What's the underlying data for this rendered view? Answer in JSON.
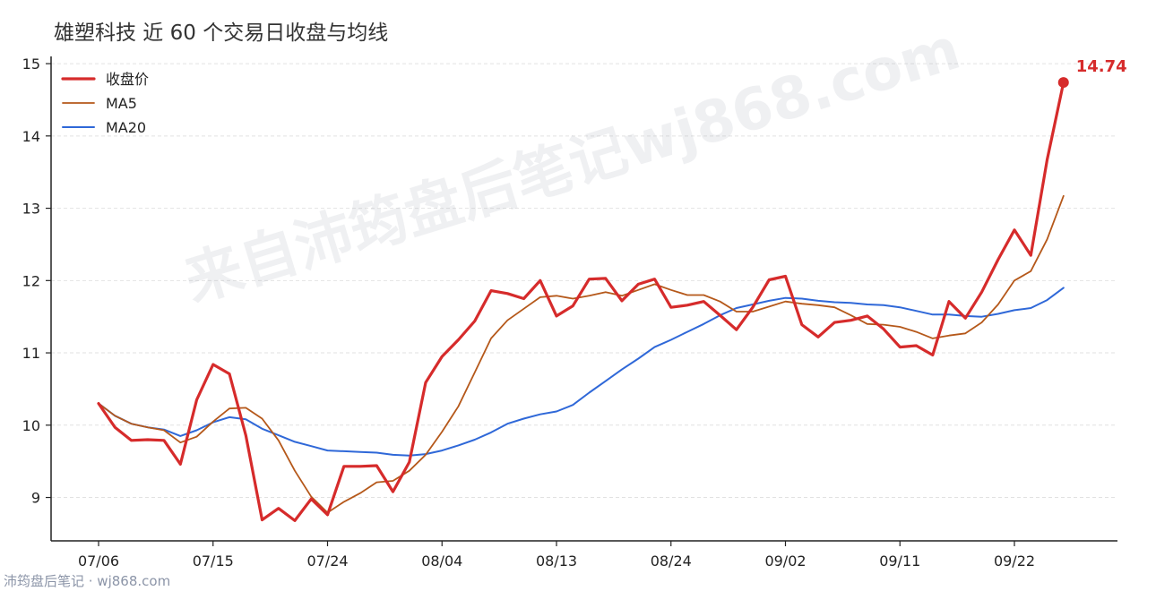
{
  "title": "雄塑科技 近 60 个交易日收盘与均线",
  "watermark": "来自沛筠盘后笔记wj868.com",
  "footer": "沛筠盘后笔记 · wj868.com",
  "colors": {
    "close": "#d62b2b",
    "ma5": "#b5581a",
    "ma20": "#2f68d8"
  },
  "chart_data": {
    "type": "line",
    "title": "雄塑科技 近 60 个交易日收盘与均线",
    "xlabel": "",
    "ylabel": "",
    "ylim": [
      8.4,
      15.1
    ],
    "yticks": [
      9,
      10,
      11,
      12,
      13,
      14,
      15
    ],
    "x_tick_labels": [
      {
        "index": 0,
        "label": "07/06"
      },
      {
        "index": 7,
        "label": "07/15"
      },
      {
        "index": 14,
        "label": "07/24"
      },
      {
        "index": 21,
        "label": "08/04"
      },
      {
        "index": 28,
        "label": "08/13"
      },
      {
        "index": 35,
        "label": "08/24"
      },
      {
        "index": 42,
        "label": "09/02"
      },
      {
        "index": 49,
        "label": "09/11"
      },
      {
        "index": 56,
        "label": "09/22"
      }
    ],
    "legend": {
      "position": "top-left"
    },
    "grid": {
      "y": true,
      "x": false
    },
    "last_value_label": "14.74",
    "series": [
      {
        "name": "收盘价",
        "key": "close",
        "values": [
          10.3,
          9.97,
          9.79,
          9.8,
          9.79,
          9.46,
          10.35,
          10.84,
          10.71,
          9.86,
          8.69,
          8.85,
          8.68,
          8.98,
          8.76,
          9.43,
          9.43,
          9.44,
          9.08,
          9.49,
          10.59,
          10.95,
          11.18,
          11.44,
          11.86,
          11.82,
          11.75,
          12.0,
          11.51,
          11.65,
          12.02,
          12.03,
          11.72,
          11.95,
          12.02,
          11.63,
          11.66,
          11.71,
          11.52,
          11.32,
          11.63,
          12.01,
          12.06,
          11.39,
          11.22,
          11.42,
          11.45,
          11.51,
          11.33,
          11.08,
          11.1,
          10.97,
          11.71,
          11.48,
          11.84,
          12.29,
          12.7,
          12.35,
          13.67,
          14.74
        ]
      },
      {
        "name": "MA5",
        "key": "ma5",
        "values": [
          10.3,
          10.13,
          10.02,
          9.97,
          9.93,
          9.76,
          9.84,
          10.05,
          10.23,
          10.24,
          10.09,
          9.79,
          9.37,
          9.01,
          8.79,
          8.94,
          9.06,
          9.21,
          9.23,
          9.37,
          9.59,
          9.91,
          10.26,
          10.73,
          11.2,
          11.45,
          11.61,
          11.77,
          11.79,
          11.75,
          11.79,
          11.84,
          11.79,
          11.87,
          11.95,
          11.87,
          11.8,
          11.8,
          11.71,
          11.57,
          11.57,
          11.64,
          11.71,
          11.68,
          11.66,
          11.63,
          11.52,
          11.4,
          11.39,
          11.36,
          11.29,
          11.2,
          11.24,
          11.27,
          11.42,
          11.67,
          12.0,
          12.13,
          12.57,
          13.17
        ]
      },
      {
        "name": "MA20",
        "key": "ma20",
        "values": [
          10.3,
          10.13,
          10.02,
          9.97,
          9.94,
          9.85,
          9.93,
          10.04,
          10.11,
          10.08,
          9.95,
          9.86,
          9.77,
          9.71,
          9.65,
          9.64,
          9.63,
          9.62,
          9.59,
          9.58,
          9.6,
          9.65,
          9.72,
          9.8,
          9.9,
          10.02,
          10.09,
          10.15,
          10.19,
          10.28,
          10.45,
          10.61,
          10.77,
          10.92,
          11.08,
          11.18,
          11.29,
          11.4,
          11.52,
          11.62,
          11.67,
          11.72,
          11.76,
          11.75,
          11.72,
          11.7,
          11.69,
          11.67,
          11.66,
          11.63,
          11.58,
          11.53,
          11.53,
          11.51,
          11.5,
          11.54,
          11.59,
          11.62,
          11.73,
          11.9
        ]
      }
    ]
  }
}
